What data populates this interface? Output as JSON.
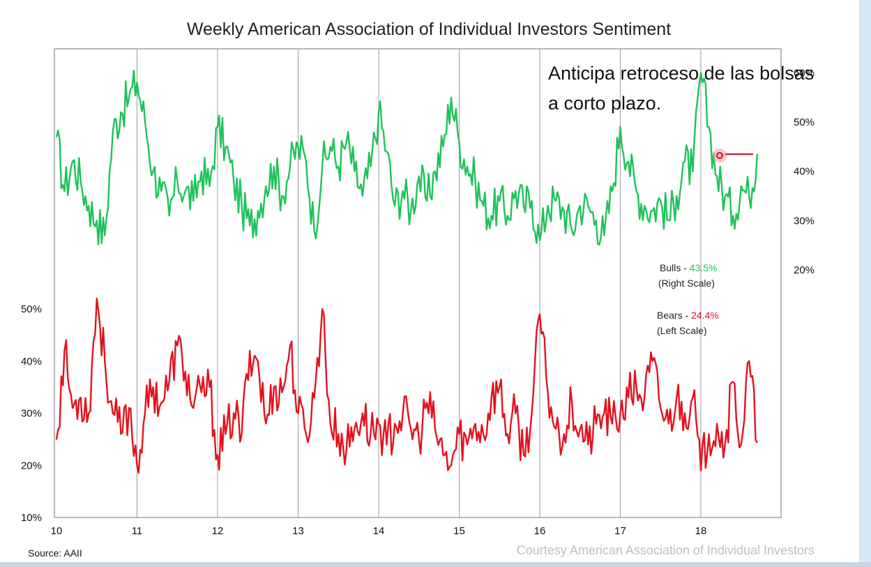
{
  "chart_data": {
    "type": "line",
    "title": "Weekly American Association of Individual Investors Sentiment",
    "x_ticks": [
      "10",
      "11",
      "12",
      "13",
      "14",
      "15",
      "16",
      "17",
      "18"
    ],
    "x_range": [
      10,
      18.7
    ],
    "left_axis": {
      "ticks": [
        "10%",
        "20%",
        "30%",
        "40%",
        "50%"
      ],
      "range": [
        10,
        60
      ]
    },
    "right_axis": {
      "ticks": [
        "20%",
        "30%",
        "40%",
        "50%",
        "60%"
      ],
      "range": [
        0,
        65
      ]
    },
    "grid": "vertical lines at each year",
    "series": [
      {
        "name": "Bulls",
        "label": "Bulls - ",
        "value_text": "43.5%",
        "scale_text": "(Right Scale)",
        "color": "#1fc25a",
        "axis": "right",
        "x": [
          10,
          10.1,
          10.2,
          10.3,
          10.4,
          10.5,
          10.6,
          10.7,
          10.8,
          10.9,
          11,
          11.1,
          11.2,
          11.3,
          11.4,
          11.5,
          11.6,
          11.7,
          11.8,
          11.9,
          12,
          12.1,
          12.2,
          12.3,
          12.4,
          12.5,
          12.6,
          12.7,
          12.8,
          12.9,
          13,
          13.1,
          13.2,
          13.3,
          13.4,
          13.5,
          13.6,
          13.7,
          13.8,
          13.9,
          14,
          14.1,
          14.2,
          14.3,
          14.4,
          14.5,
          14.6,
          14.7,
          14.8,
          14.9,
          15,
          15.1,
          15.2,
          15.3,
          15.4,
          15.5,
          15.6,
          15.7,
          15.8,
          15.9,
          16,
          16.1,
          16.2,
          16.3,
          16.4,
          16.5,
          16.6,
          16.7,
          16.8,
          16.9,
          17,
          17.1,
          17.2,
          17.3,
          17.4,
          17.5,
          17.6,
          17.7,
          17.8,
          17.9,
          18,
          18.1,
          18.2,
          18.3,
          18.4,
          18.5,
          18.6,
          18.7
        ],
        "values": [
          47,
          36,
          42,
          38,
          33,
          30,
          27,
          48,
          52,
          55,
          58,
          50,
          40,
          36,
          31,
          38,
          36,
          34,
          40,
          37,
          49,
          45,
          38,
          33,
          29,
          32,
          37,
          41,
          35,
          41,
          45,
          42,
          28,
          41,
          45,
          41,
          46,
          40,
          35,
          41,
          52,
          44,
          33,
          36,
          32,
          39,
          34,
          40,
          45,
          55,
          46,
          41,
          38,
          33,
          31,
          34,
          31,
          36,
          33,
          34,
          26,
          33,
          34,
          32,
          28,
          33,
          33,
          30,
          27,
          36,
          49,
          42,
          36,
          33,
          32,
          34,
          30,
          35,
          42,
          40,
          60,
          49,
          39,
          35,
          31,
          37,
          35,
          43.5
        ]
      },
      {
        "name": "Bears",
        "label": "Bears - ",
        "value_text": "24.4%",
        "scale_text": "(Left Scale)",
        "color": "#e3121e",
        "axis": "left",
        "x": [
          10,
          10.1,
          10.2,
          10.3,
          10.4,
          10.5,
          10.6,
          10.7,
          10.8,
          10.9,
          11,
          11.1,
          11.2,
          11.3,
          11.4,
          11.5,
          11.6,
          11.7,
          11.8,
          11.9,
          12,
          12.1,
          12.2,
          12.3,
          12.4,
          12.5,
          12.6,
          12.7,
          12.8,
          12.9,
          13,
          13.1,
          13.2,
          13.3,
          13.4,
          13.5,
          13.6,
          13.7,
          13.8,
          13.9,
          14,
          14.1,
          14.2,
          14.3,
          14.4,
          14.5,
          14.6,
          14.7,
          14.8,
          14.9,
          15,
          15.1,
          15.2,
          15.3,
          15.4,
          15.5,
          15.6,
          15.7,
          15.8,
          15.9,
          16,
          16.1,
          16.2,
          16.3,
          16.4,
          16.5,
          16.6,
          16.7,
          16.8,
          16.9,
          17,
          17.1,
          17.2,
          17.3,
          17.4,
          17.5,
          17.6,
          17.7,
          17.8,
          17.9,
          18,
          18.1,
          18.2,
          18.3,
          18.4,
          18.5,
          18.6,
          18.7
        ],
        "values": [
          25,
          42,
          31,
          33,
          30,
          52,
          40,
          30,
          26,
          31,
          20,
          30,
          35,
          32,
          36,
          43,
          38,
          31,
          34,
          35,
          22,
          26,
          30,
          26,
          42,
          40,
          28,
          35,
          34,
          43,
          30,
          26,
          33,
          50,
          28,
          26,
          23,
          27,
          30,
          26,
          28,
          24,
          28,
          30,
          27,
          25,
          32,
          27,
          22,
          20,
          26,
          24,
          28,
          26,
          33,
          35,
          26,
          30,
          22,
          30,
          49,
          34,
          27,
          26,
          32,
          27,
          24,
          28,
          30,
          28,
          30,
          33,
          35,
          33,
          40,
          31,
          28,
          33,
          30,
          33,
          19,
          26,
          28,
          24,
          36,
          24,
          40,
          24.4
        ]
      }
    ]
  },
  "annotation": {
    "line1": "Anticipa retroceso de las bolsas",
    "line2": "a corto plazo."
  },
  "source_text": "Source: AAII",
  "courtesy_text": "Courtesy American Association of Individual Investors"
}
